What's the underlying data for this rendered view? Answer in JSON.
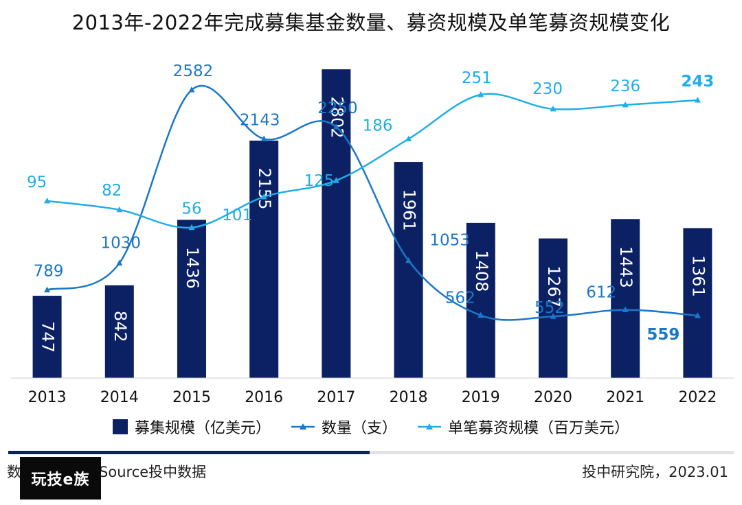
{
  "title": "2013年-2022年完成募集基金数量、募资规模及单笔募资规模变化",
  "colors": {
    "bar": "#0b2163",
    "count_line": "#1a77c9",
    "avg_line": "#1eaee8",
    "divider_dark": "#0b2163"
  },
  "legend": {
    "scale_label": "募集规模（亿美元）",
    "count_label": "数量（支）",
    "avg_label": "单笔募资规模（百万美元）"
  },
  "footer": {
    "source": "数据来源：CVSource投中数据",
    "credit": "投中研究院，2023.01",
    "watermark": "玩技e族"
  },
  "chart_data": {
    "type": "bar",
    "categories": [
      "2013",
      "2014",
      "2015",
      "2016",
      "2017",
      "2018",
      "2019",
      "2020",
      "2021",
      "2022"
    ],
    "series": [
      {
        "name": "募集规模（亿美元）",
        "kind": "bar",
        "values": [
          747,
          842,
          1436,
          2155,
          2802,
          1961,
          1408,
          1267,
          1443,
          1361
        ]
      },
      {
        "name": "数量（支）",
        "kind": "line",
        "values": [
          789,
          1030,
          2582,
          2143,
          2250,
          1053,
          562,
          552,
          612,
          559
        ]
      },
      {
        "name": "单笔募资规模（百万美元）",
        "kind": "line",
        "values": [
          95,
          82,
          56,
          101,
          125,
          186,
          251,
          230,
          236,
          243
        ]
      }
    ],
    "bar_ylim": [
      0,
      3000
    ],
    "count_ylim": [
      0,
      3200
    ],
    "avg_ylim": [
      -165,
      370
    ],
    "grid": false,
    "legend_position": "bottom"
  }
}
